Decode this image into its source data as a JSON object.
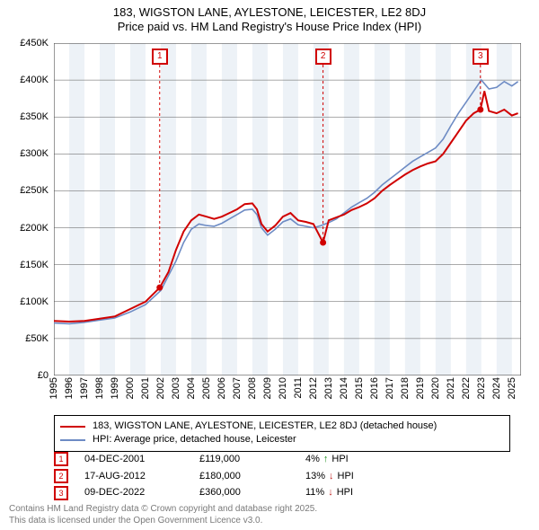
{
  "title_main": "183, WIGSTON LANE, AYLESTONE, LEICESTER, LE2 8DJ",
  "title_sub": "Price paid vs. HM Land Registry's House Price Index (HPI)",
  "chart": {
    "type": "line",
    "background_color": "#ffffff",
    "plot_border_color": "#555555",
    "grid_color": "#555555",
    "band_color": "#edf2f7",
    "x_years": [
      1995,
      1996,
      1997,
      1998,
      1999,
      2000,
      2001,
      2002,
      2003,
      2004,
      2005,
      2006,
      2007,
      2008,
      2009,
      2010,
      2011,
      2012,
      2013,
      2014,
      2015,
      2016,
      2017,
      2018,
      2019,
      2020,
      2021,
      2022,
      2023,
      2024,
      2025
    ],
    "xlim": [
      1995,
      2025.6
    ],
    "ylim": [
      0,
      450000
    ],
    "ytick_step": 50000,
    "ytick_labels": [
      "£0",
      "£50K",
      "£100K",
      "£150K",
      "£200K",
      "£250K",
      "£300K",
      "£350K",
      "£400K",
      "£450K"
    ],
    "currency_prefix": "£",
    "series_property": {
      "label": "183, WIGSTON LANE, AYLESTONE, LEICESTER, LE2 8DJ (detached house)",
      "color": "#d00000",
      "line_width": 2,
      "points": [
        [
          1995.0,
          74000
        ],
        [
          1996.0,
          73000
        ],
        [
          1997.0,
          74000
        ],
        [
          1998.0,
          77000
        ],
        [
          1999.0,
          80000
        ],
        [
          2000.0,
          90000
        ],
        [
          2001.0,
          100000
        ],
        [
          2001.93,
          119000
        ],
        [
          2002.5,
          140000
        ],
        [
          2003.0,
          170000
        ],
        [
          2003.5,
          195000
        ],
        [
          2004.0,
          210000
        ],
        [
          2004.5,
          218000
        ],
        [
          2005.0,
          215000
        ],
        [
          2005.5,
          212000
        ],
        [
          2006.0,
          215000
        ],
        [
          2006.5,
          220000
        ],
        [
          2007.0,
          225000
        ],
        [
          2007.5,
          232000
        ],
        [
          2008.0,
          233000
        ],
        [
          2008.3,
          225000
        ],
        [
          2008.6,
          205000
        ],
        [
          2009.0,
          195000
        ],
        [
          2009.5,
          203000
        ],
        [
          2010.0,
          215000
        ],
        [
          2010.5,
          220000
        ],
        [
          2011.0,
          210000
        ],
        [
          2011.5,
          208000
        ],
        [
          2012.0,
          205000
        ],
        [
          2012.63,
          180000
        ],
        [
          2013.0,
          210000
        ],
        [
          2013.5,
          214000
        ],
        [
          2014.0,
          218000
        ],
        [
          2014.5,
          224000
        ],
        [
          2015.0,
          228000
        ],
        [
          2015.5,
          233000
        ],
        [
          2016.0,
          240000
        ],
        [
          2016.5,
          250000
        ],
        [
          2017.0,
          258000
        ],
        [
          2017.5,
          265000
        ],
        [
          2018.0,
          272000
        ],
        [
          2018.5,
          278000
        ],
        [
          2019.0,
          283000
        ],
        [
          2019.5,
          287000
        ],
        [
          2020.0,
          290000
        ],
        [
          2020.5,
          300000
        ],
        [
          2021.0,
          315000
        ],
        [
          2021.5,
          330000
        ],
        [
          2022.0,
          345000
        ],
        [
          2022.5,
          355000
        ],
        [
          2022.94,
          360000
        ],
        [
          2023.2,
          385000
        ],
        [
          2023.5,
          358000
        ],
        [
          2024.0,
          355000
        ],
        [
          2024.5,
          360000
        ],
        [
          2025.0,
          352000
        ],
        [
          2025.4,
          355000
        ]
      ]
    },
    "series_hpi": {
      "label": "HPI: Average price, detached house, Leicester",
      "color": "#6d8bc4",
      "line_width": 1.6,
      "points": [
        [
          1995.0,
          71000
        ],
        [
          1996.0,
          70000
        ],
        [
          1997.0,
          72000
        ],
        [
          1998.0,
          75000
        ],
        [
          1999.0,
          78000
        ],
        [
          2000.0,
          86000
        ],
        [
          2001.0,
          96000
        ],
        [
          2002.0,
          115000
        ],
        [
          2003.0,
          155000
        ],
        [
          2003.5,
          180000
        ],
        [
          2004.0,
          198000
        ],
        [
          2004.5,
          205000
        ],
        [
          2005.0,
          203000
        ],
        [
          2005.5,
          202000
        ],
        [
          2006.0,
          206000
        ],
        [
          2006.5,
          212000
        ],
        [
          2007.0,
          218000
        ],
        [
          2007.5,
          224000
        ],
        [
          2008.0,
          225000
        ],
        [
          2008.3,
          218000
        ],
        [
          2008.6,
          200000
        ],
        [
          2009.0,
          190000
        ],
        [
          2009.5,
          198000
        ],
        [
          2010.0,
          208000
        ],
        [
          2010.5,
          212000
        ],
        [
          2011.0,
          204000
        ],
        [
          2011.5,
          202000
        ],
        [
          2012.0,
          200000
        ],
        [
          2012.5,
          203000
        ],
        [
          2013.0,
          207000
        ],
        [
          2013.5,
          212000
        ],
        [
          2014.0,
          220000
        ],
        [
          2014.5,
          228000
        ],
        [
          2015.0,
          234000
        ],
        [
          2015.5,
          240000
        ],
        [
          2016.0,
          248000
        ],
        [
          2016.5,
          258000
        ],
        [
          2017.0,
          266000
        ],
        [
          2017.5,
          274000
        ],
        [
          2018.0,
          282000
        ],
        [
          2018.5,
          290000
        ],
        [
          2019.0,
          296000
        ],
        [
          2019.5,
          302000
        ],
        [
          2020.0,
          308000
        ],
        [
          2020.5,
          320000
        ],
        [
          2021.0,
          338000
        ],
        [
          2021.5,
          355000
        ],
        [
          2022.0,
          370000
        ],
        [
          2022.5,
          385000
        ],
        [
          2023.0,
          400000
        ],
        [
          2023.5,
          388000
        ],
        [
          2024.0,
          390000
        ],
        [
          2024.5,
          398000
        ],
        [
          2025.0,
          392000
        ],
        [
          2025.4,
          398000
        ]
      ]
    },
    "sale_markers": [
      {
        "n": "1",
        "x": 2001.93,
        "y": 119000
      },
      {
        "n": "2",
        "x": 2012.63,
        "y": 180000
      },
      {
        "n": "3",
        "x": 2022.94,
        "y": 360000
      }
    ]
  },
  "legend": {
    "items": [
      {
        "label_key": "chart.series_property.label",
        "color_key": "chart.series_property.color"
      },
      {
        "label_key": "chart.series_hpi.label",
        "color_key": "chart.series_hpi.color"
      }
    ]
  },
  "sales_table": [
    {
      "n": "1",
      "date": "04-DEC-2001",
      "price": "£119,000",
      "hpi_pct": "4%",
      "hpi_dir": "up",
      "hpi_suffix": "HPI"
    },
    {
      "n": "2",
      "date": "17-AUG-2012",
      "price": "£180,000",
      "hpi_pct": "13%",
      "hpi_dir": "down",
      "hpi_suffix": "HPI"
    },
    {
      "n": "3",
      "date": "09-DEC-2022",
      "price": "£360,000",
      "hpi_pct": "11%",
      "hpi_dir": "down",
      "hpi_suffix": "HPI"
    }
  ],
  "footer_line1": "Contains HM Land Registry data © Crown copyright and database right 2025.",
  "footer_line2": "This data is licensed under the Open Government Licence v3.0.",
  "colors": {
    "marker_border": "#d00000",
    "up_arrow": "#1a8f1a",
    "down_arrow": "#c02020",
    "footer_text": "#7a7a7a"
  }
}
